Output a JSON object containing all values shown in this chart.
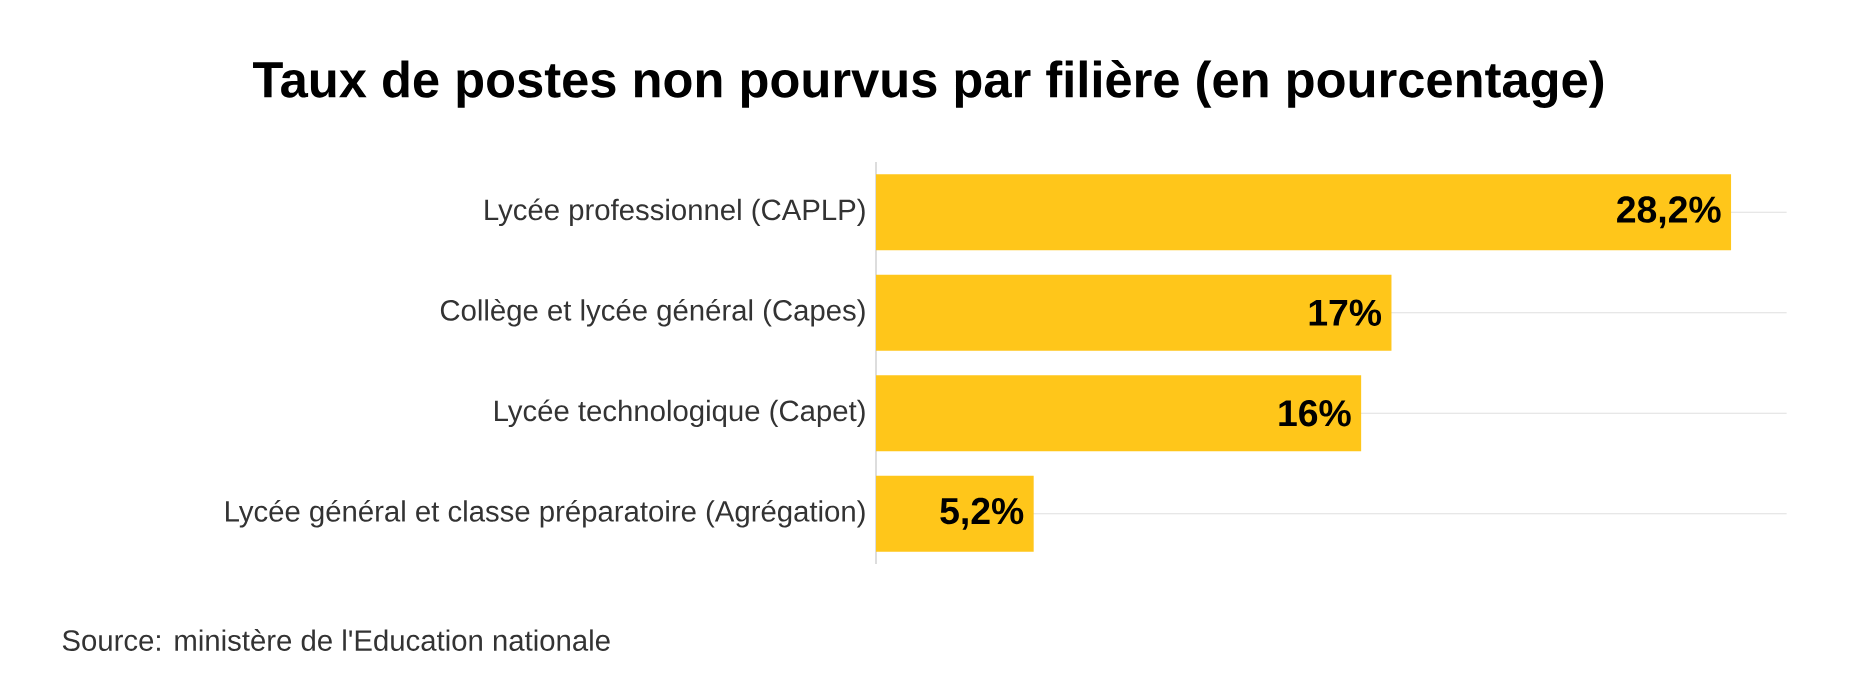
{
  "chart_data": {
    "type": "bar",
    "orientation": "horizontal",
    "title": "Taux de postes non pourvus par filière (en pourcentage)",
    "categories": [
      "Lycée professionnel (CAPLP)",
      "Collège et lycée général (Capes)",
      "Lycée technologique (Capet)",
      "Lycée général et classe préparatoire (Agrégation)"
    ],
    "values": [
      28.2,
      17,
      16,
      5.2
    ],
    "value_labels": [
      "28,2%",
      "17%",
      "16%",
      "5,2%"
    ],
    "color": "#ffc61a",
    "grid": "y",
    "tick_labels": "y",
    "annotations": [
      "Source: ministère de l'Education nationale"
    ]
  }
}
